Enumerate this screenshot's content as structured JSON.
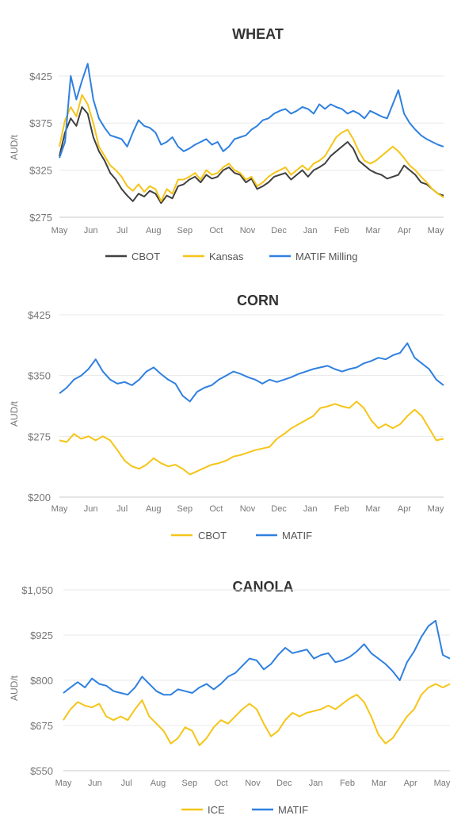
{
  "chart_data": [
    {
      "type": "line",
      "title": "WHEAT",
      "ylabel": "AUD/t",
      "ylim": [
        275,
        440
      ],
      "yticks": [
        275,
        325,
        375,
        425
      ],
      "ytick_labels": [
        "$275",
        "$325",
        "$375",
        "$425"
      ],
      "x_labels": [
        "May",
        "Jun",
        "Jul",
        "Aug",
        "Sep",
        "Oct",
        "Nov",
        "Dec",
        "Jan",
        "Feb",
        "Mar",
        "Apr",
        "May"
      ],
      "grid": true,
      "legend": "bottom",
      "series": [
        {
          "name": "CBOT",
          "color": "#404040",
          "values": [
            340,
            365,
            380,
            372,
            392,
            385,
            360,
            345,
            335,
            322,
            315,
            305,
            298,
            292,
            300,
            297,
            303,
            300,
            290,
            298,
            295,
            308,
            310,
            315,
            318,
            312,
            320,
            316,
            318,
            325,
            328,
            322,
            320,
            312,
            316,
            305,
            308,
            312,
            318,
            320,
            322,
            315,
            320,
            325,
            318,
            325,
            328,
            332,
            340,
            345,
            350,
            355,
            348,
            335,
            330,
            325,
            322,
            320,
            316,
            318,
            320,
            330,
            325,
            320,
            312,
            310,
            305,
            300,
            298
          ]
        },
        {
          "name": "Kansas",
          "color": "#f5c518",
          "values": [
            350,
            378,
            392,
            382,
            405,
            395,
            375,
            350,
            340,
            330,
            325,
            318,
            308,
            303,
            310,
            302,
            308,
            305,
            292,
            305,
            300,
            315,
            315,
            318,
            322,
            315,
            325,
            320,
            322,
            328,
            332,
            325,
            322,
            315,
            318,
            308,
            312,
            318,
            322,
            325,
            328,
            320,
            325,
            330,
            325,
            332,
            335,
            340,
            350,
            360,
            365,
            368,
            358,
            345,
            335,
            332,
            335,
            340,
            345,
            350,
            345,
            338,
            330,
            325,
            318,
            312,
            305,
            300,
            296
          ]
        },
        {
          "name": "MATIF Milling",
          "color": "#2f80e0",
          "values": [
            338,
            355,
            425,
            400,
            420,
            438,
            400,
            380,
            370,
            362,
            360,
            358,
            350,
            365,
            378,
            372,
            370,
            365,
            352,
            355,
            360,
            350,
            345,
            348,
            352,
            355,
            358,
            352,
            355,
            345,
            350,
            358,
            360,
            362,
            368,
            372,
            378,
            380,
            385,
            388,
            390,
            385,
            388,
            392,
            390,
            385,
            395,
            390,
            395,
            392,
            390,
            385,
            388,
            385,
            380,
            388,
            385,
            382,
            380,
            395,
            410,
            385,
            375,
            368,
            362,
            358,
            355,
            352,
            350
          ]
        }
      ]
    },
    {
      "type": "line",
      "title": "CORN",
      "ylabel": "AUD/t",
      "ylim": [
        200,
        425
      ],
      "yticks": [
        200,
        275,
        350,
        425
      ],
      "ytick_labels": [
        "$200",
        "$275",
        "$350",
        "$425"
      ],
      "x_labels": [
        "May",
        "Jun",
        "Jul",
        "Aug",
        "Sep",
        "Oct",
        "Nov",
        "Dec",
        "Jan",
        "Feb",
        "Mar",
        "Apr",
        "May"
      ],
      "grid": true,
      "legend": "bottom",
      "series": [
        {
          "name": "CBOT",
          "color": "#f5c518",
          "values": [
            270,
            268,
            278,
            272,
            275,
            270,
            275,
            270,
            258,
            245,
            238,
            235,
            240,
            248,
            242,
            238,
            240,
            235,
            228,
            232,
            236,
            240,
            242,
            245,
            250,
            252,
            255,
            258,
            260,
            262,
            272,
            278,
            285,
            290,
            295,
            300,
            310,
            312,
            315,
            312,
            310,
            318,
            310,
            295,
            285,
            290,
            285,
            290,
            300,
            308,
            300,
            285,
            270,
            272
          ]
        },
        {
          "name": "MATIF",
          "color": "#2f80e0",
          "values": [
            328,
            335,
            345,
            350,
            358,
            370,
            355,
            345,
            340,
            342,
            338,
            345,
            355,
            360,
            352,
            345,
            340,
            325,
            318,
            330,
            335,
            338,
            345,
            350,
            355,
            352,
            348,
            345,
            340,
            345,
            342,
            345,
            348,
            352,
            355,
            358,
            360,
            362,
            358,
            355,
            358,
            360,
            365,
            368,
            372,
            370,
            375,
            378,
            390,
            372,
            365,
            358,
            345,
            338
          ]
        }
      ]
    },
    {
      "type": "line",
      "title": "CANOLA",
      "ylabel": "AUD/t",
      "ylim": [
        550,
        1050
      ],
      "yticks": [
        550,
        675,
        800,
        925,
        1050
      ],
      "ytick_labels": [
        "$550",
        "$675",
        "$800",
        "$925",
        "$1,050"
      ],
      "x_labels": [
        "May",
        "Jun",
        "Jul",
        "Aug",
        "Sep",
        "Oct",
        "Nov",
        "Dec",
        "Jan",
        "Feb",
        "Mar",
        "Apr",
        "May"
      ],
      "grid": true,
      "legend": "bottom",
      "series": [
        {
          "name": "ICE",
          "color": "#f5c518",
          "values": [
            690,
            720,
            740,
            730,
            725,
            735,
            700,
            690,
            700,
            690,
            720,
            745,
            700,
            680,
            660,
            625,
            640,
            670,
            660,
            620,
            640,
            670,
            690,
            680,
            700,
            720,
            735,
            720,
            680,
            645,
            660,
            690,
            710,
            700,
            710,
            715,
            720,
            730,
            720,
            735,
            750,
            760,
            740,
            700,
            650,
            625,
            640,
            670,
            700,
            720,
            760,
            780,
            790,
            780,
            790
          ]
        },
        {
          "name": "MATIF",
          "color": "#2f80e0",
          "values": [
            765,
            780,
            795,
            780,
            805,
            790,
            785,
            770,
            765,
            760,
            780,
            810,
            790,
            770,
            760,
            760,
            775,
            770,
            765,
            780,
            790,
            775,
            790,
            810,
            820,
            840,
            860,
            855,
            830,
            845,
            870,
            890,
            875,
            880,
            885,
            860,
            870,
            875,
            850,
            855,
            865,
            880,
            900,
            875,
            860,
            845,
            825,
            800,
            850,
            880,
            920,
            950,
            965,
            870,
            860
          ]
        }
      ]
    }
  ]
}
